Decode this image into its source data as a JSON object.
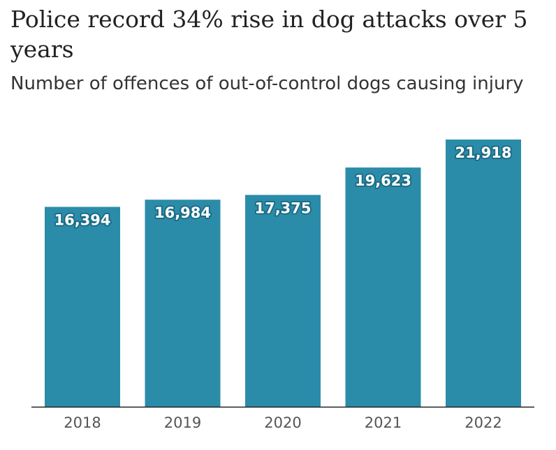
{
  "header": {
    "title": "Police record 34% rise in dog attacks over 5 years",
    "subtitle": "Number of offences of out-of-control dogs causing injury"
  },
  "colors": {
    "bar": "#2b8ca9",
    "axis": "#222222",
    "label_text": "#ffffff"
  },
  "chart_data": {
    "type": "bar",
    "title": "Police record 34% rise in dog attacks over 5 years",
    "subtitle": "Number of offences of out-of-control dogs causing injury",
    "categories": [
      "2018",
      "2019",
      "2020",
      "2021",
      "2022"
    ],
    "values": [
      16394,
      16984,
      17375,
      19623,
      21918
    ],
    "data_labels": [
      "16,394",
      "16,984",
      "17,375",
      "19,623",
      "21,918"
    ],
    "xlabel": "",
    "ylabel": "",
    "ylim": [
      0,
      21918
    ],
    "grid": false,
    "legend": "none"
  }
}
